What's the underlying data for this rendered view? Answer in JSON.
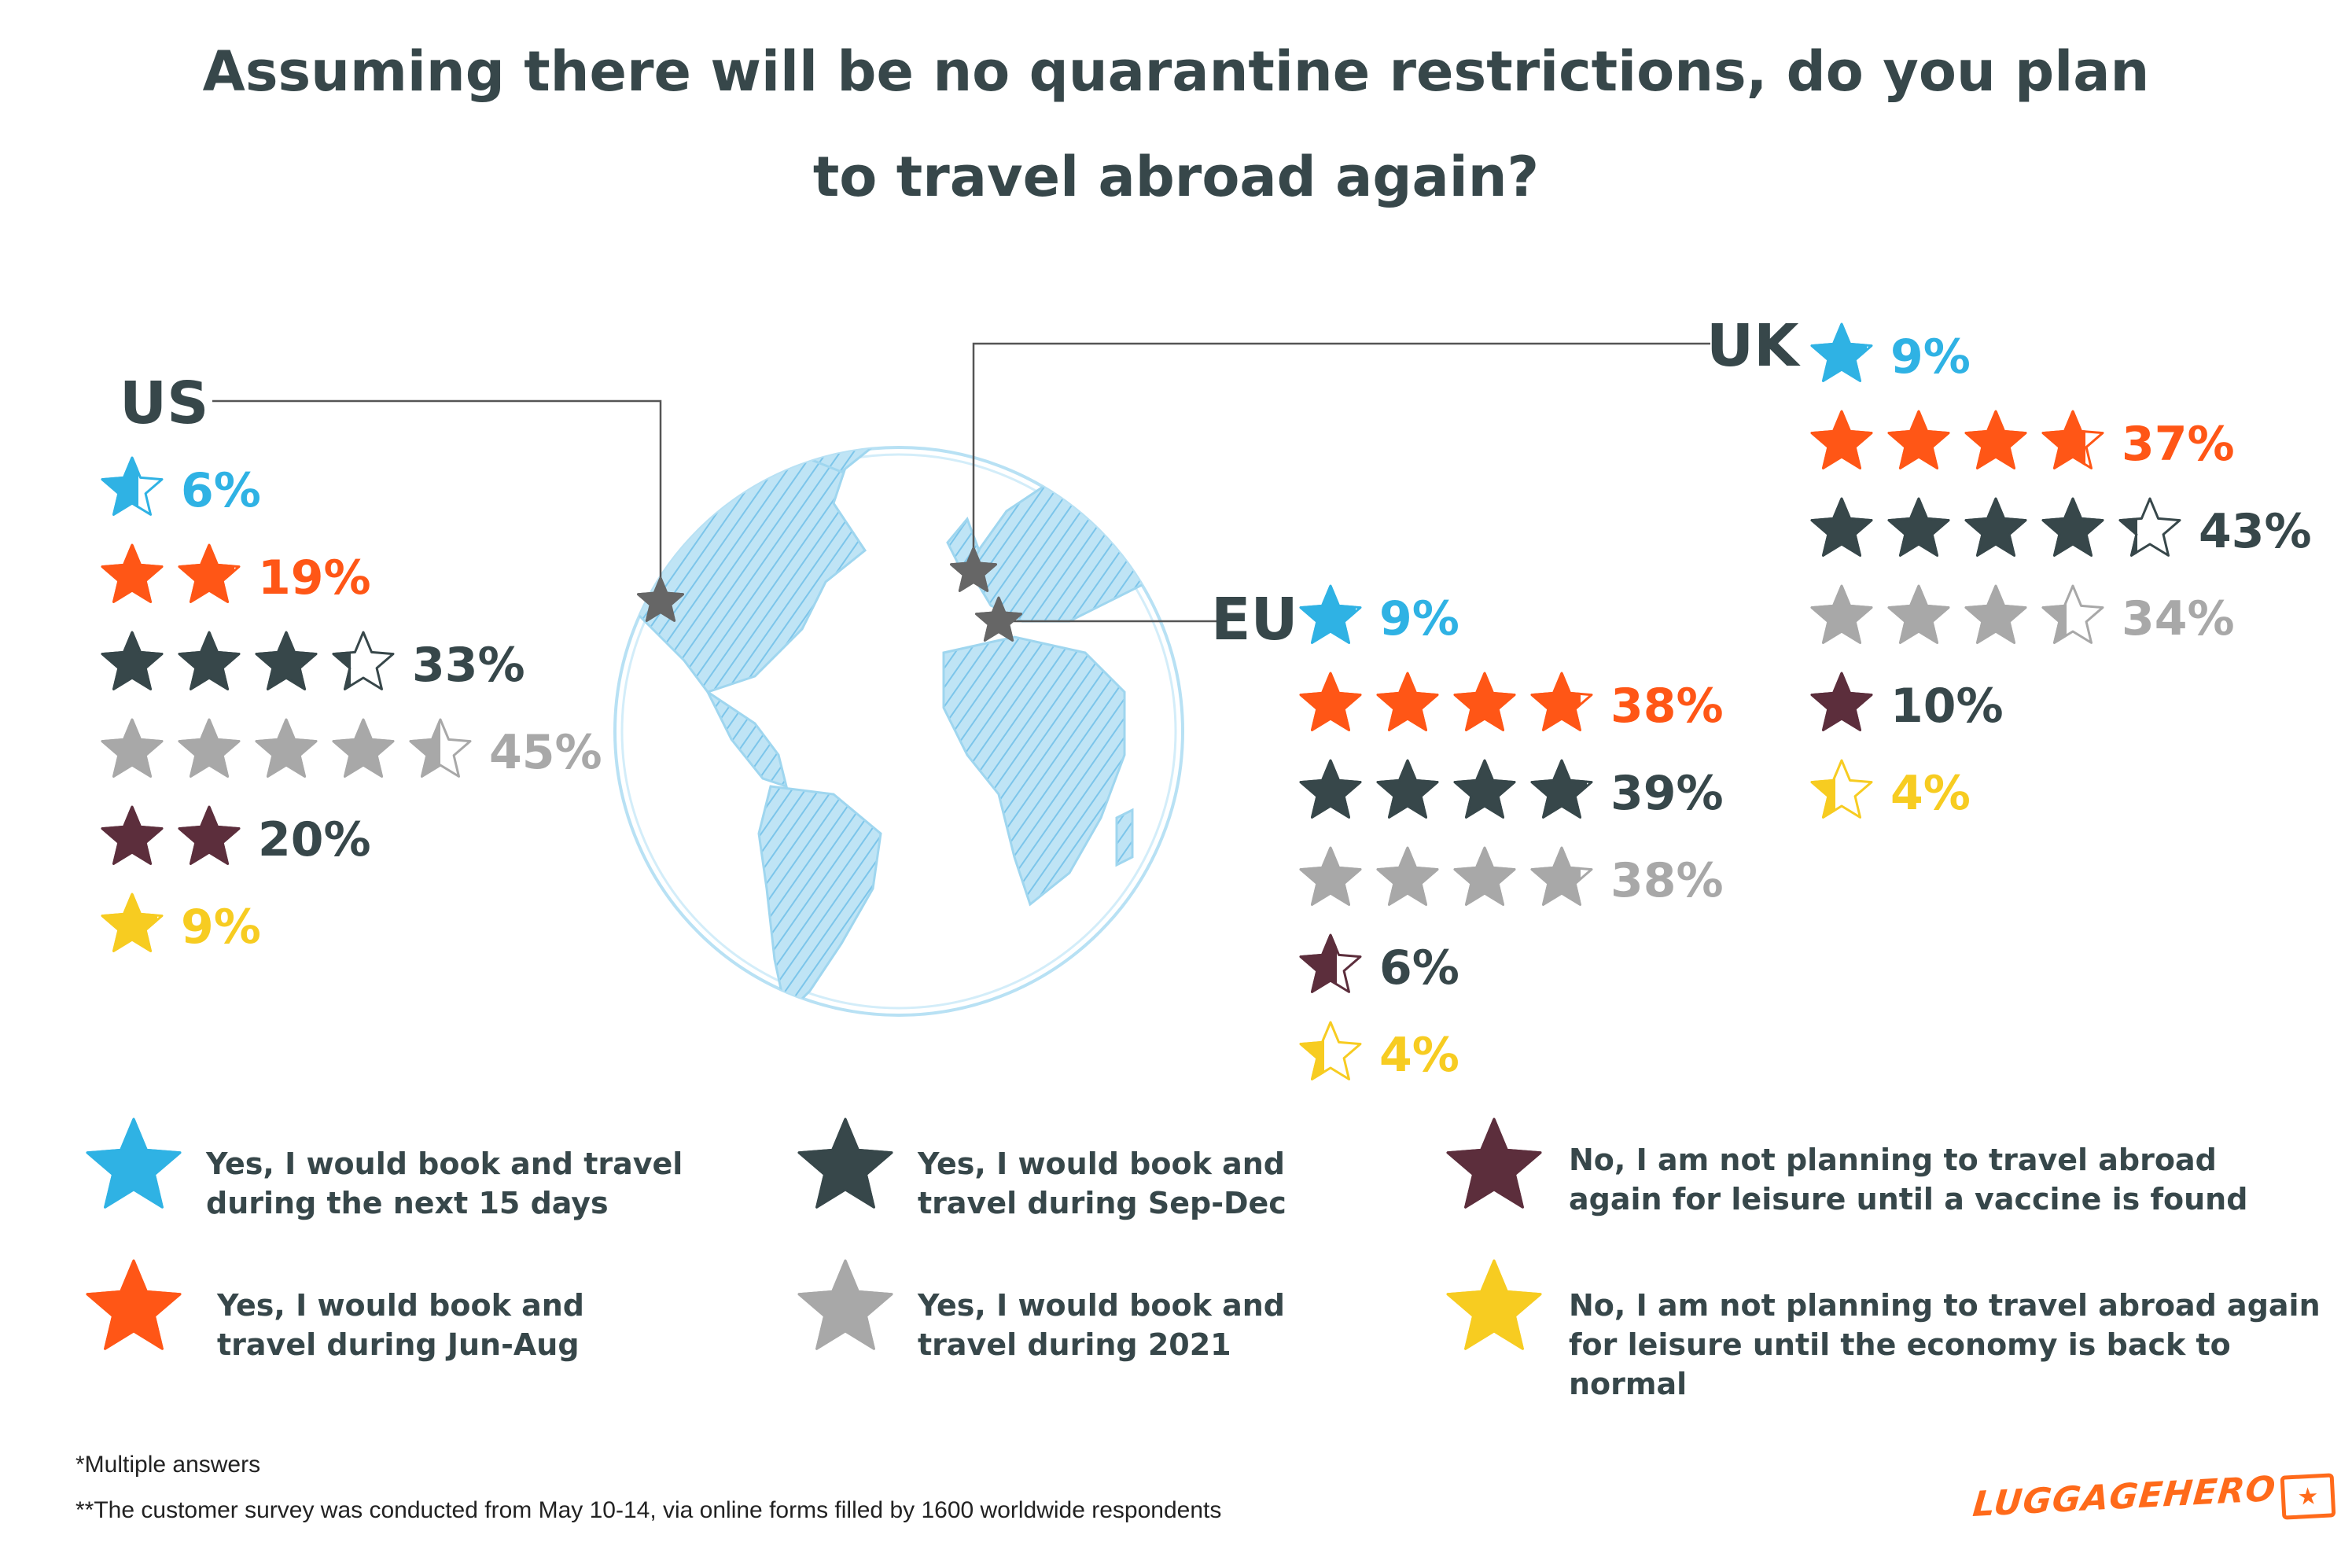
{
  "title": {
    "line1": "Assuming there will be no quarantine restrictions, do you plan",
    "line2": "to travel abroad again?"
  },
  "colors": {
    "next15": "#2fb2e4",
    "junaug": "#ff5616",
    "sepdec": "#37474a",
    "y2021": "#a8a8a8",
    "vaccine": "#5c2e3c",
    "economy": "#f7cc21",
    "globe": "#a3d8f1",
    "text": "#37474a"
  },
  "chart_data": {
    "type": "pictograph",
    "title": "Assuming there will be no quarantine restrictions, do you plan to travel abroad again?",
    "unit": "percent of respondents (multiple answers)",
    "star_value": 10,
    "categories": [
      "Yes, I would book and travel during the next 15 days",
      "Yes, I would book and travel during Jun-Aug",
      "Yes, I would book and travel during Sep-Dec",
      "Yes, I would book and travel during 2021",
      "No, I am not planning to travel abroad again for leisure until a vaccine is found",
      "No, I am not planning to travel abroad again for leisure until the economy is back to normal"
    ],
    "series": [
      {
        "name": "US",
        "values": [
          6,
          19,
          33,
          45,
          20,
          9
        ],
        "labels": [
          "6%",
          "19%",
          "33%",
          "45%",
          "20%",
          "9%"
        ]
      },
      {
        "name": "EU",
        "values": [
          9,
          38,
          39,
          38,
          6,
          4
        ],
        "labels": [
          "9%",
          "38%",
          "39%",
          "38%",
          "6%",
          "4%"
        ]
      },
      {
        "name": "UK",
        "values": [
          9,
          37,
          43,
          34,
          10,
          4
        ],
        "labels": [
          "9%",
          "37%",
          "43%",
          "34%",
          "10%",
          "4%"
        ]
      }
    ]
  },
  "legend": [
    {
      "key": "next15",
      "line1": "Yes, I would book and travel",
      "line2": "during the next 15 days"
    },
    {
      "key": "junaug",
      "line1": "Yes, I would book and",
      "line2": "travel during Jun-Aug"
    },
    {
      "key": "sepdec",
      "line1": "Yes, I would book and",
      "line2": "travel during Sep-Dec"
    },
    {
      "key": "y2021",
      "line1": "Yes, I would book and",
      "line2": "travel during 2021"
    },
    {
      "key": "vaccine",
      "line1": "No, I am not planning to travel abroad",
      "line2": "again for leisure until a vaccine is found"
    },
    {
      "key": "economy",
      "line1": "No, I am not planning to travel abroad again",
      "line2": "for leisure until the economy is back to normal"
    }
  ],
  "footnotes": {
    "multiple": "*Multiple answers",
    "survey": "**The customer survey was conducted from May 10-14, via online forms filled by 1600 worldwide respondents"
  },
  "logo": {
    "text": "LUGGAGEHERO",
    "icon": "suitcase-star-icon"
  }
}
